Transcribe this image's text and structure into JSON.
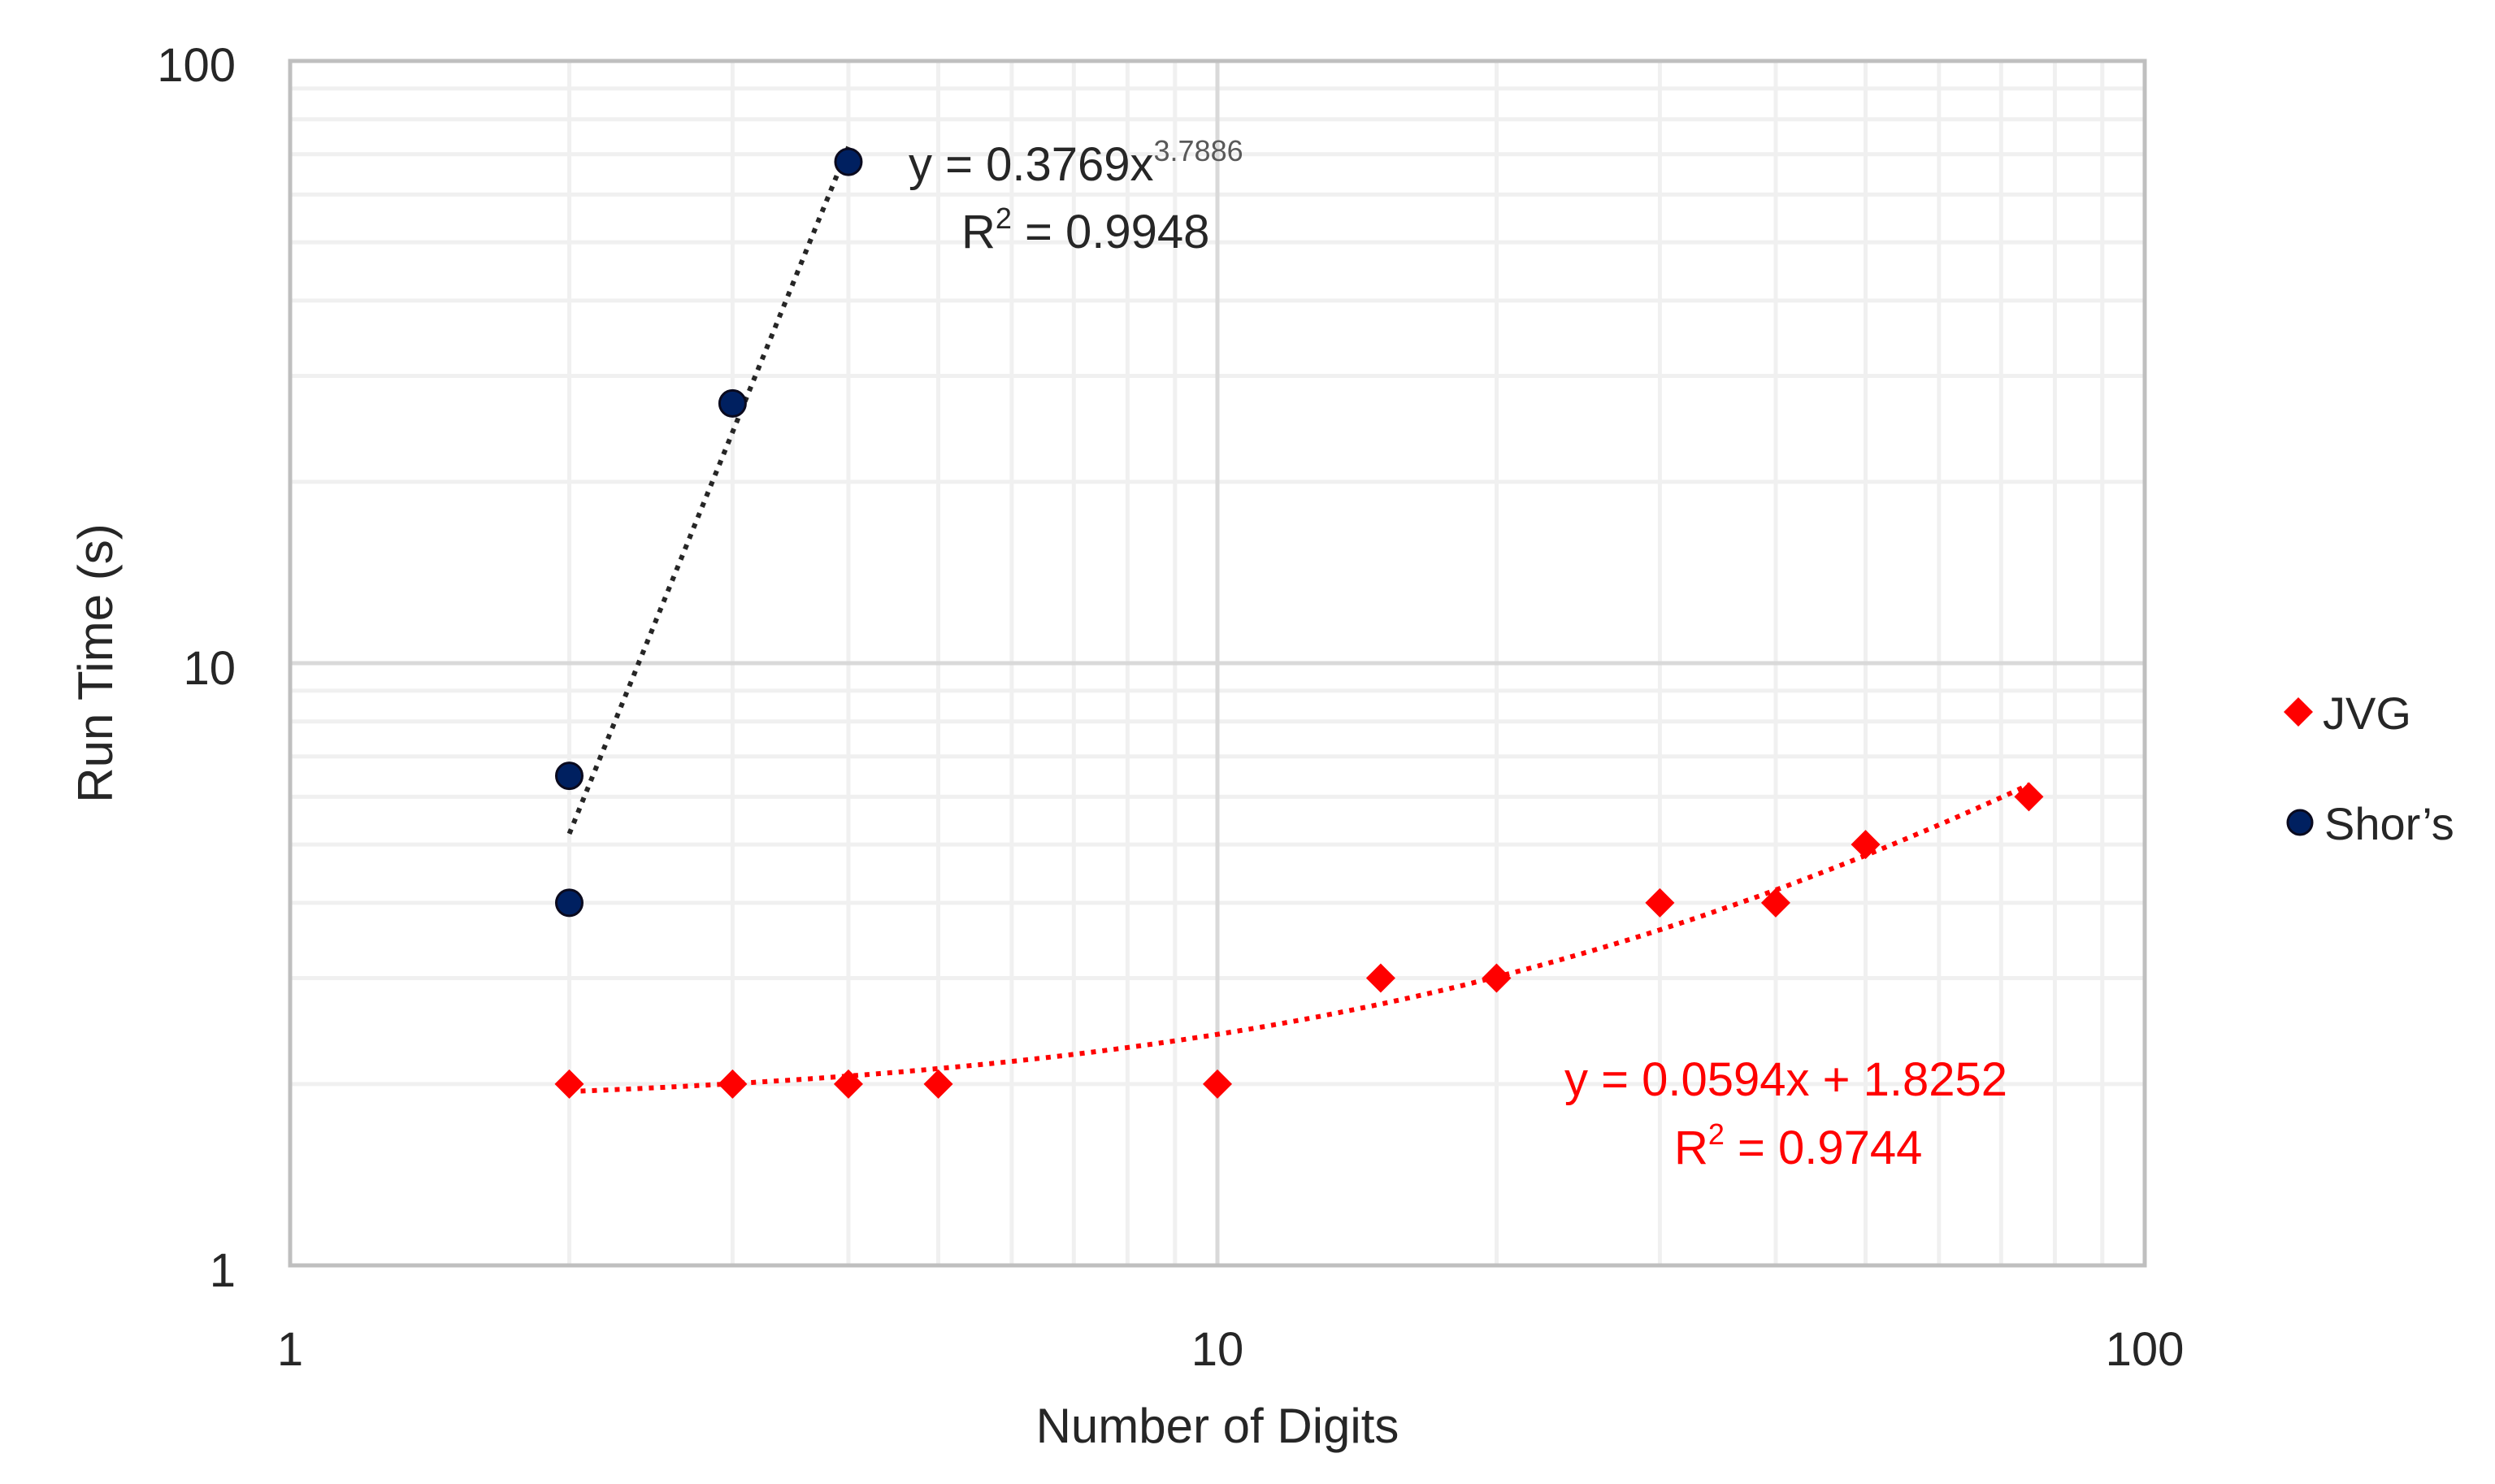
{
  "chart_data": {
    "type": "scatter",
    "title": "",
    "xlabel": "Number of Digits",
    "ylabel": "Run Time (s)",
    "xscale": "log",
    "yscale": "log",
    "xlim": [
      1,
      100
    ],
    "ylim": [
      1,
      100
    ],
    "x_ticks": [
      "1",
      "10",
      "100"
    ],
    "y_ticks": [
      "1",
      "10",
      "100"
    ],
    "grid": true,
    "legend_position": "right",
    "series": [
      {
        "name": "JVG",
        "marker": "diamond",
        "color": "#ff0000",
        "x": [
          2,
          3,
          4,
          5,
          10,
          15,
          20,
          30,
          40,
          50,
          75
        ],
        "y": [
          2,
          2,
          2,
          2,
          2,
          3,
          3,
          4,
          4,
          5,
          6
        ],
        "trendline": {
          "type": "linear",
          "equation": "y = 0.0594x + 1.8252",
          "r_squared": "R² = 0.9744",
          "slope": 0.0594,
          "intercept": 1.8252,
          "x_range": [
            2,
            75
          ],
          "style": "dotted"
        }
      },
      {
        "name": "Shor’s",
        "marker": "circle",
        "color": "#002060",
        "x": [
          2,
          2,
          3,
          4
        ],
        "y": [
          4,
          6.5,
          27,
          68
        ],
        "trendline": {
          "type": "power",
          "equation": "y = 0.3769x^3.7886",
          "r_squared": "R² = 0.9948",
          "coefficient": 0.3769,
          "exponent": 3.7886,
          "x_range": [
            2,
            4
          ],
          "style": "dotted"
        }
      }
    ]
  },
  "axes": {
    "x_title": "Number of Digits",
    "y_title": "Run Time (s)",
    "x_tick_labels": [
      "1",
      "10",
      "100"
    ],
    "y_tick_labels": [
      "1",
      "10",
      "100"
    ]
  },
  "annotations": {
    "shor_eq_prefix": "y = 0.3769x",
    "shor_eq_exp": "3.7886",
    "shor_r2_prefix": "R",
    "shor_r2_sup": "2",
    "shor_r2_value": " = 0.9948",
    "jvg_eq": "y = 0.0594x + 1.8252",
    "jvg_r2_prefix": "R",
    "jvg_r2_sup": "2",
    "jvg_r2_value": " = 0.9744"
  },
  "legend": {
    "items": [
      {
        "label": "JVG",
        "color": "#ff0000",
        "marker": "diamond"
      },
      {
        "label": "Shor’s",
        "color": "#002060",
        "marker": "circle"
      }
    ]
  },
  "colors": {
    "jvg": "#ff0000",
    "shor": "#002060",
    "shor_trend": "#262626",
    "grid_major": "#d9d9d9",
    "grid_minor": "#f0f0f0",
    "text": "#262626"
  }
}
